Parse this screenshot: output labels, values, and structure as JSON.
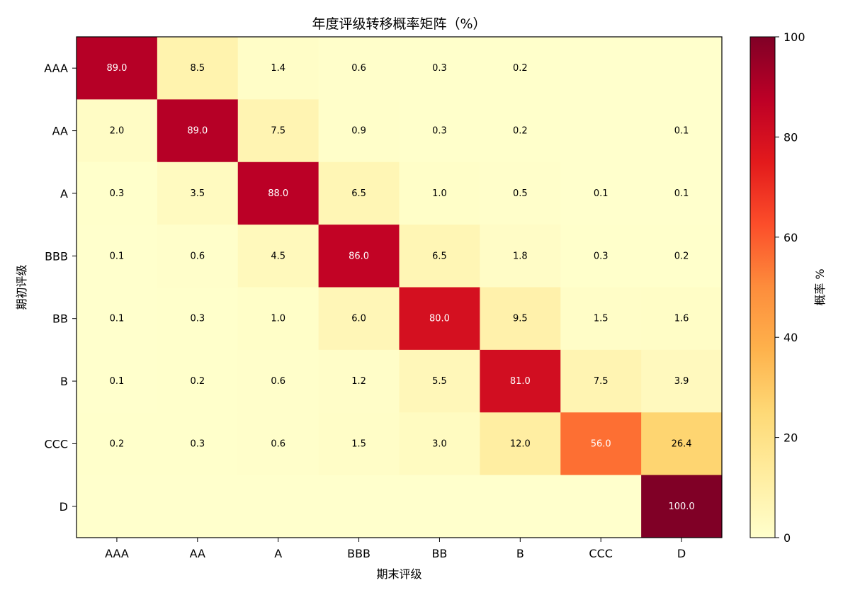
{
  "chart_data": {
    "type": "heatmap",
    "title": "年度评级转移概率矩阵（%）",
    "xlabel": "期末评级",
    "ylabel": "期初评级",
    "x_categories": [
      "AAA",
      "AA",
      "A",
      "BBB",
      "BB",
      "B",
      "CCC",
      "D"
    ],
    "y_categories": [
      "AAA",
      "AA",
      "A",
      "BBB",
      "BB",
      "B",
      "CCC",
      "D"
    ],
    "values": [
      [
        89.0,
        8.5,
        1.4,
        0.6,
        0.3,
        0.2,
        0.0,
        0.0
      ],
      [
        2.0,
        89.0,
        7.5,
        0.9,
        0.3,
        0.2,
        0.0,
        0.1
      ],
      [
        0.3,
        3.5,
        88.0,
        6.5,
        1.0,
        0.5,
        0.1,
        0.1
      ],
      [
        0.1,
        0.6,
        4.5,
        86.0,
        6.5,
        1.8,
        0.3,
        0.2
      ],
      [
        0.1,
        0.3,
        1.0,
        6.0,
        80.0,
        9.5,
        1.5,
        1.6
      ],
      [
        0.1,
        0.2,
        0.6,
        1.2,
        5.5,
        81.0,
        7.5,
        3.9
      ],
      [
        0.2,
        0.3,
        0.6,
        1.5,
        3.0,
        12.0,
        56.0,
        26.4
      ],
      [
        0.0,
        0.0,
        0.0,
        0.0,
        0.0,
        0.0,
        0.0,
        100.0
      ]
    ],
    "colorbar": {
      "label": "概率 %",
      "range": [
        0,
        100
      ],
      "ticks": [
        0,
        20,
        40,
        60,
        80,
        100
      ],
      "colormap": "YlOrRd"
    }
  }
}
